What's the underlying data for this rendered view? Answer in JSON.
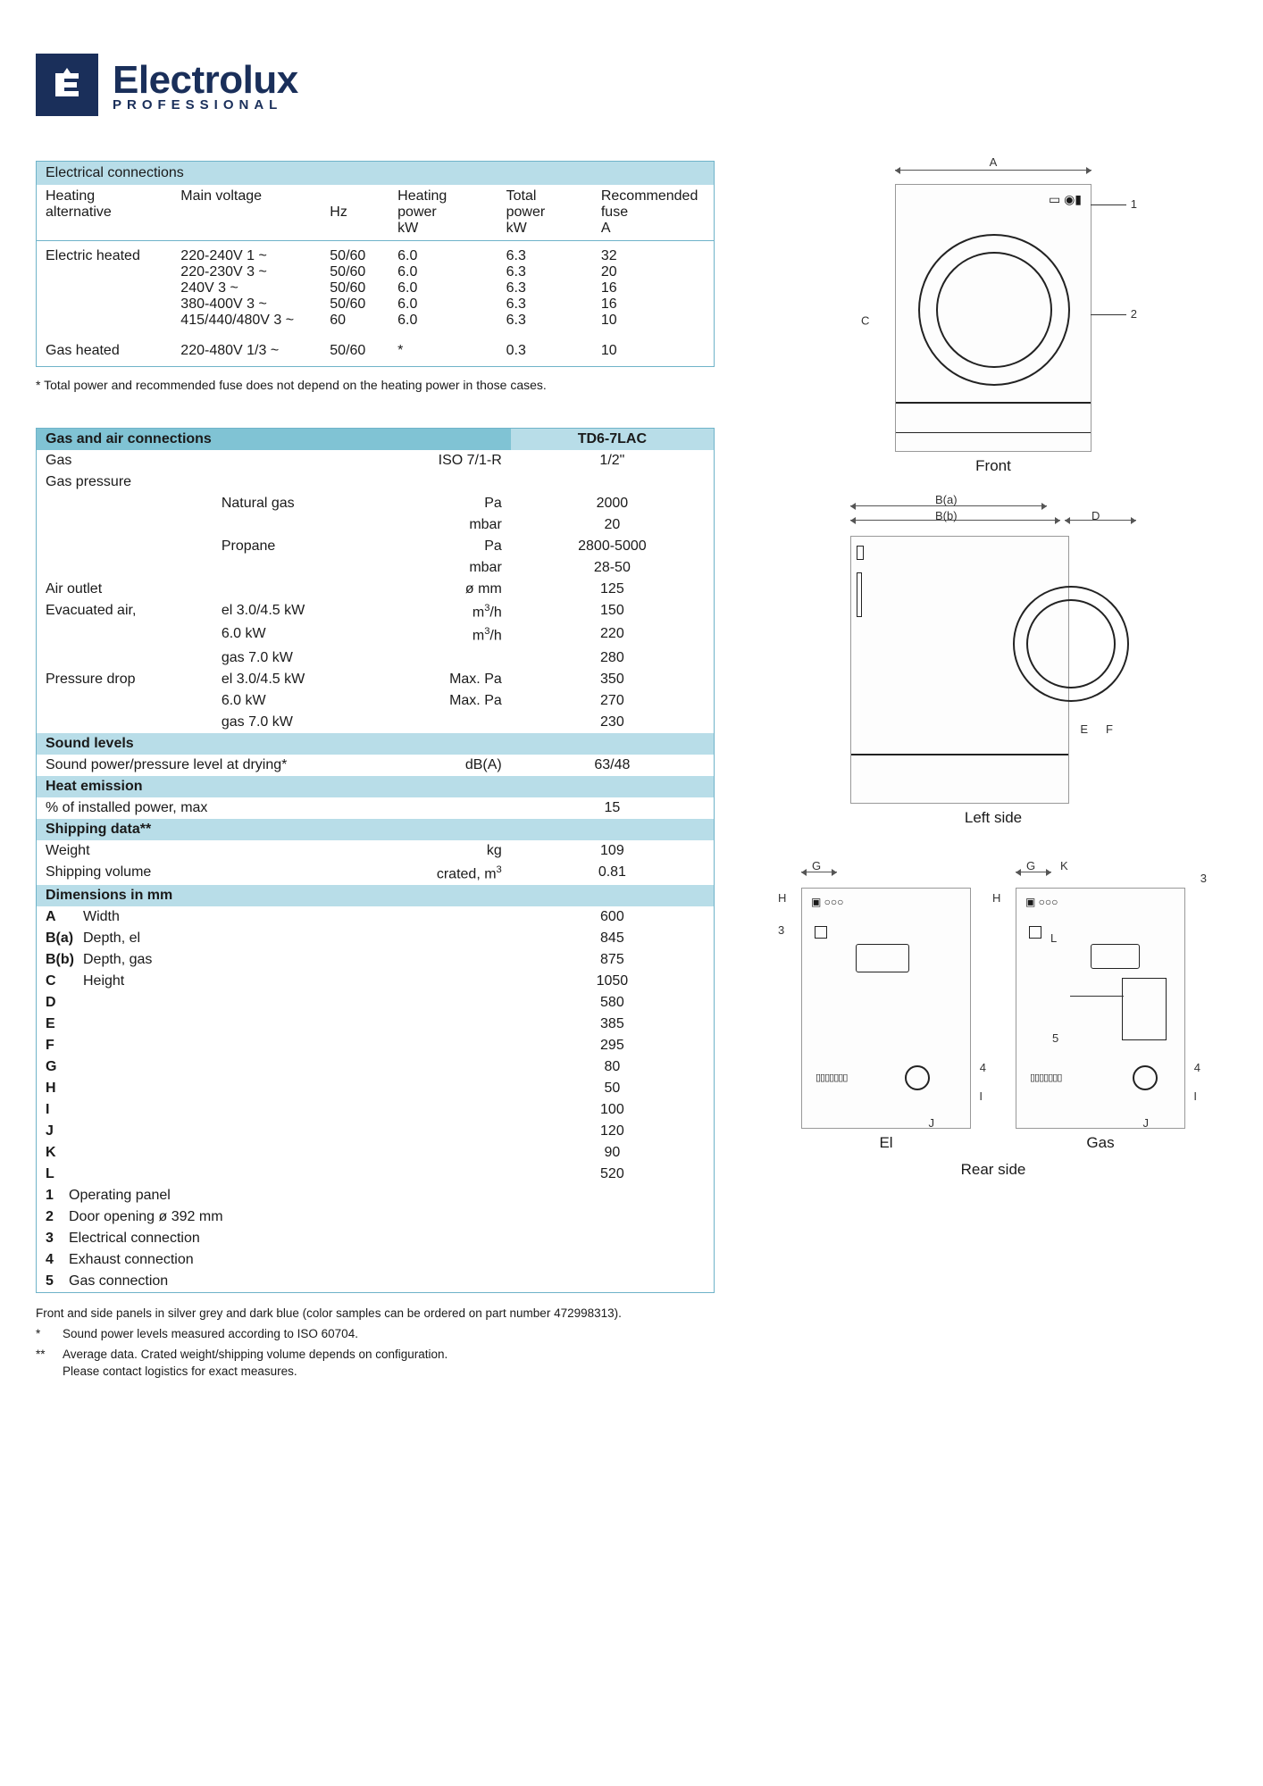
{
  "brand": {
    "name": "Electrolux",
    "sub": "PROFESSIONAL"
  },
  "electrical": {
    "title": "Electrical connections",
    "columns": [
      "Heating alternative",
      "Main voltage",
      "Hz",
      "Heating power kW",
      "Total power kW",
      "Recommended fuse A"
    ],
    "rows": [
      {
        "alt": "Electric heated",
        "voltages": [
          "220-240V 1 ~",
          "220-230V 3 ~",
          "240V 3 ~",
          "380-400V 3 ~",
          "415/440/480V 3 ~"
        ],
        "hz": [
          "50/60",
          "50/60",
          "50/60",
          "50/60",
          "60"
        ],
        "heat_kw": [
          "6.0",
          "6.0",
          "6.0",
          "6.0",
          "6.0"
        ],
        "total_kw": [
          "6.3",
          "6.3",
          "6.3",
          "6.3",
          "6.3"
        ],
        "fuse": [
          "32",
          "20",
          "16",
          "16",
          "10"
        ]
      },
      {
        "alt": "Gas heated",
        "voltages": [
          "220-480V 1/3 ~"
        ],
        "hz": [
          "50/60"
        ],
        "heat_kw": [
          "*"
        ],
        "total_kw": [
          "0.3"
        ],
        "fuse": [
          "10"
        ]
      }
    ],
    "footnote": "* Total power and recommended fuse does not depend on the heating power in those cases."
  },
  "spec": {
    "model": "TD6-7LAC",
    "sections": {
      "gas_air": {
        "title": "Gas and air connections",
        "rows": [
          {
            "l": "Gas",
            "m": "",
            "u": "ISO 7/1-R",
            "v": "1/2\""
          },
          {
            "l": "Gas pressure",
            "m": "",
            "u": "",
            "v": ""
          },
          {
            "l": "",
            "m": "Natural gas",
            "u": "Pa",
            "v": "2000"
          },
          {
            "l": "",
            "m": "",
            "u": "mbar",
            "v": "20"
          },
          {
            "l": "",
            "m": "Propane",
            "u": "Pa",
            "v": "2800-5000"
          },
          {
            "l": "",
            "m": "",
            "u": "mbar",
            "v": "28-50"
          },
          {
            "l": "Air outlet",
            "m": "",
            "u": "ø mm",
            "v": "125"
          },
          {
            "l": "Evacuated air,",
            "m": "el 3.0/4.5 kW",
            "u": "m³/h",
            "v": "150"
          },
          {
            "l": "",
            "m": "6.0 kW",
            "u": "m³/h",
            "v": "220"
          },
          {
            "l": "",
            "m": "gas 7.0 kW",
            "u": "",
            "v": "280"
          },
          {
            "l": "Pressure drop",
            "m": "el 3.0/4.5 kW",
            "u": "Max. Pa",
            "v": "350"
          },
          {
            "l": "",
            "m": "6.0 kW",
            "u": "Max. Pa",
            "v": "270"
          },
          {
            "l": "",
            "m": "gas 7.0 kW",
            "u": "",
            "v": "230"
          }
        ]
      },
      "sound": {
        "title": "Sound levels",
        "rows": [
          {
            "l": "Sound power/pressure level at drying*",
            "m": "",
            "u": "dB(A)",
            "v": "63/48"
          }
        ]
      },
      "heat": {
        "title": "Heat emission",
        "rows": [
          {
            "l": "% of installed power, max",
            "m": "",
            "u": "",
            "v": "15"
          }
        ]
      },
      "shipping": {
        "title": "Shipping data**",
        "rows": [
          {
            "l": "Weight",
            "m": "",
            "u": "kg",
            "v": "109"
          },
          {
            "l": "Shipping volume",
            "m": "",
            "u": "crated, m³",
            "v": "0.81"
          }
        ]
      },
      "dimensions": {
        "title": "Dimensions in mm",
        "rows": [
          {
            "letter": "A",
            "label": "Width",
            "v": "600"
          },
          {
            "letter": "B(a)",
            "label": "Depth, el",
            "v": "845"
          },
          {
            "letter": "B(b)",
            "label": "Depth, gas",
            "v": "875"
          },
          {
            "letter": "C",
            "label": "Height",
            "v": "1050"
          },
          {
            "letter": "D",
            "label": "",
            "v": "580"
          },
          {
            "letter": "E",
            "label": "",
            "v": "385"
          },
          {
            "letter": "F",
            "label": "",
            "v": "295"
          },
          {
            "letter": "G",
            "label": "",
            "v": "80"
          },
          {
            "letter": "H",
            "label": "",
            "v": "50"
          },
          {
            "letter": "I",
            "label": "",
            "v": "100"
          },
          {
            "letter": "J",
            "label": "",
            "v": "120"
          },
          {
            "letter": "K",
            "label": "",
            "v": "90"
          },
          {
            "letter": "L",
            "label": "",
            "v": "520"
          }
        ],
        "legend": [
          {
            "n": "1",
            "t": "Operating panel"
          },
          {
            "n": "2",
            "t": "Door opening ø 392 mm"
          },
          {
            "n": "3",
            "t": "Electrical connection"
          },
          {
            "n": "4",
            "t": "Exhaust connection"
          },
          {
            "n": "5",
            "t": "Gas connection"
          }
        ]
      }
    }
  },
  "diagrams": {
    "front": {
      "label": "Front",
      "dim_A": "A",
      "dim_C": "C",
      "call_1": "1",
      "call_2": "2"
    },
    "leftside": {
      "label": "Left side",
      "dim_Ba": "B(a)",
      "dim_Bb": "B(b)",
      "dim_D": "D",
      "dim_E": "E",
      "dim_F": "F"
    },
    "rear": {
      "label": "Rear side",
      "el": "El",
      "gas": "Gas",
      "marks": {
        "G": "G",
        "H": "H",
        "I": "I",
        "J": "J",
        "K": "K",
        "L": "L",
        "3": "3",
        "4": "4",
        "5": "5"
      }
    }
  },
  "footer": {
    "line1": "Front and side panels in silver grey and dark blue (color samples can be ordered on part number 472998313).",
    "star1": "Sound power levels measured according to ISO 60704.",
    "star2a": "Average data. Crated weight/shipping volume depends on configuration.",
    "star2b": "Please contact logistics for exact measures."
  },
  "colors": {
    "header_bg": "#b8dde8",
    "section_bg": "#80c3d4",
    "border": "#6fb3c9",
    "brand": "#1a2f5a"
  }
}
